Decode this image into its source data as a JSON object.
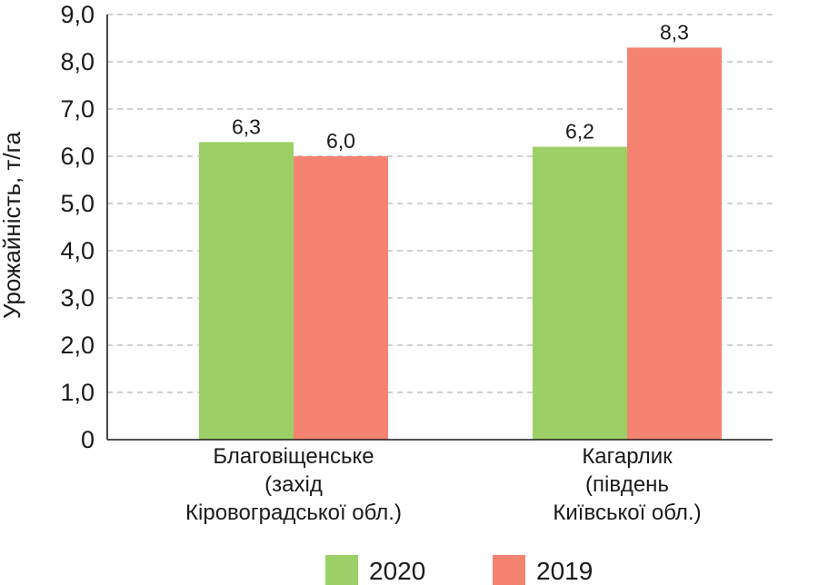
{
  "chart_data": {
    "type": "bar",
    "ylabel": "Урожайність, т/га",
    "xlabel": "",
    "ylim": [
      0,
      9
    ],
    "yticks": [
      "0",
      "1,0",
      "2,0",
      "3,0",
      "4,0",
      "5,0",
      "6,0",
      "7,0",
      "8,0",
      "9,0"
    ],
    "grid": true,
    "legend_position": "bottom",
    "categories": [
      [
        "Благовіщенське",
        "(захід",
        "Кіровоградської обл.)"
      ],
      [
        "Кагарлик",
        "(південь",
        "Київської обл.)"
      ]
    ],
    "series": [
      {
        "name": "2020",
        "color": "#9ccf65",
        "values": [
          6.3,
          6.2
        ],
        "labels": [
          "6,3",
          "6,2"
        ]
      },
      {
        "name": "2019",
        "color": "#f48372",
        "values": [
          6.0,
          8.3
        ],
        "labels": [
          "6,0",
          "8,3"
        ]
      }
    ]
  }
}
